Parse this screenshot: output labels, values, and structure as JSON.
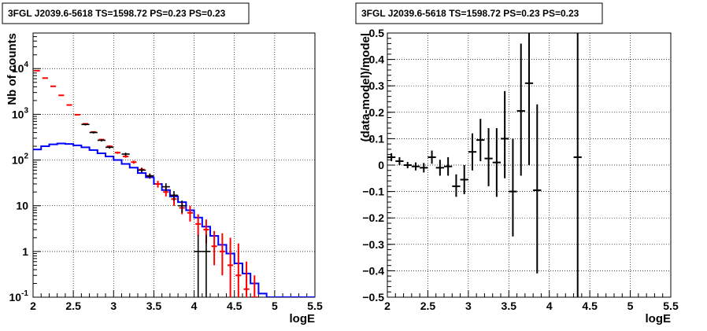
{
  "chart_data": [
    {
      "type": "histogram",
      "title": "3FGL J2039.6-5618 TS=1598.72 PS=0.23 PS=0.23",
      "xlabel": "logE",
      "ylabel": "Nb of counts",
      "xlim": [
        2,
        5.5
      ],
      "ylim": [
        0.1,
        60000
      ],
      "y_scale": "log",
      "grid": true,
      "x_ticks": [
        "2",
        "2.5",
        "3",
        "3.5",
        "4",
        "4.5",
        "5",
        "5.5"
      ],
      "y_ticks": [
        {
          "v": 10000,
          "b": "10",
          "e": "4"
        },
        {
          "v": 1000,
          "b": "10",
          "e": "3"
        },
        {
          "v": 100,
          "b": "10",
          "e": "2"
        },
        {
          "v": 10,
          "b": "10",
          "e": ""
        },
        {
          "v": 1,
          "b": "1",
          "e": ""
        },
        {
          "v": 0.1,
          "b": "10",
          "e": "-1"
        }
      ],
      "bin_width": 0.1,
      "model_blue": {
        "color": "#0000ff",
        "bin_edges": [
          2.0,
          2.1,
          2.2,
          2.3,
          2.4,
          2.5,
          2.6,
          2.7,
          2.8,
          2.9,
          3.0,
          3.1,
          3.2,
          3.3,
          3.4,
          3.5,
          3.6,
          3.7,
          3.8,
          3.9,
          4.0,
          4.1,
          4.2,
          4.3,
          4.4,
          4.5,
          4.6,
          4.7,
          4.8,
          4.9,
          5.0,
          5.1,
          5.2,
          5.3,
          5.4,
          5.5
        ],
        "values": [
          170,
          200,
          220,
          230,
          225,
          210,
          190,
          165,
          140,
          120,
          100,
          82,
          68,
          52,
          42,
          30,
          22,
          16,
          12,
          8,
          5.5,
          3.5,
          2.2,
          1.4,
          0.9,
          0.55,
          0.33,
          0.2,
          0.12,
          0.1,
          0.1,
          0.1,
          0.1,
          0.1,
          0.1
        ]
      },
      "model_red": {
        "color": "#ff0000",
        "points": [
          {
            "x": 2.05,
            "y": 9000,
            "lo": 8800,
            "hi": 9200
          },
          {
            "x": 2.15,
            "y": 6200,
            "lo": 6050,
            "hi": 6350
          },
          {
            "x": 2.25,
            "y": 4100,
            "lo": 4000,
            "hi": 4200
          },
          {
            "x": 2.35,
            "y": 2600,
            "lo": 2550,
            "hi": 2650
          },
          {
            "x": 2.45,
            "y": 1600,
            "lo": 1560,
            "hi": 1640
          },
          {
            "x": 2.55,
            "y": 980,
            "lo": 950,
            "hi": 1010
          },
          {
            "x": 2.65,
            "y": 620,
            "lo": 600,
            "hi": 640
          },
          {
            "x": 2.75,
            "y": 410,
            "lo": 395,
            "hi": 425
          },
          {
            "x": 2.85,
            "y": 280,
            "lo": 270,
            "hi": 290
          },
          {
            "x": 2.95,
            "y": 200,
            "lo": 190,
            "hi": 210
          },
          {
            "x": 3.05,
            "y": 145,
            "lo": 137,
            "hi": 153
          },
          {
            "x": 3.15,
            "y": 120,
            "lo": 112,
            "hi": 128
          },
          {
            "x": 3.25,
            "y": 90,
            "lo": 83,
            "hi": 97
          },
          {
            "x": 3.35,
            "y": 62,
            "lo": 56,
            "hi": 68
          },
          {
            "x": 3.45,
            "y": 45,
            "lo": 40,
            "hi": 50
          },
          {
            "x": 3.55,
            "y": 30,
            "lo": 25,
            "hi": 35
          },
          {
            "x": 3.65,
            "y": 20,
            "lo": 16,
            "hi": 25
          },
          {
            "x": 3.75,
            "y": 14,
            "lo": 10,
            "hi": 18
          },
          {
            "x": 3.85,
            "y": 9,
            "lo": 6.5,
            "hi": 12
          },
          {
            "x": 3.95,
            "y": 7,
            "lo": 4.5,
            "hi": 10
          },
          {
            "x": 4.05,
            "y": 4,
            "lo": 2.2,
            "hi": 6.5
          },
          {
            "x": 4.15,
            "y": 3,
            "lo": 1.5,
            "hi": 5
          },
          {
            "x": 4.25,
            "y": 1.3,
            "lo": 0.5,
            "hi": 2.8
          },
          {
            "x": 4.35,
            "y": 1,
            "lo": 0.3,
            "hi": 2.5
          },
          {
            "x": 4.45,
            "y": 0.5,
            "lo": 0.1,
            "hi": 2.0
          },
          {
            "x": 4.55,
            "y": 0.3,
            "lo": 0.1,
            "hi": 1.5
          },
          {
            "x": 4.65,
            "y": 0.15,
            "lo": 0.1,
            "hi": 0.6
          },
          {
            "x": 4.75,
            "y": 0.1,
            "lo": 0.1,
            "hi": 0.3
          }
        ]
      },
      "data_black": {
        "color": "#000000",
        "points": [
          {
            "x": 2.65,
            "y": 600,
            "lo": 570,
            "hi": 630
          },
          {
            "x": 2.75,
            "y": 400,
            "lo": 380,
            "hi": 420
          },
          {
            "x": 2.85,
            "y": 270,
            "lo": 255,
            "hi": 285
          },
          {
            "x": 2.95,
            "y": 190,
            "lo": 178,
            "hi": 202
          },
          {
            "x": 3.15,
            "y": 135,
            "lo": 125,
            "hi": 145
          },
          {
            "x": 3.35,
            "y": 60,
            "lo": 53,
            "hi": 67
          },
          {
            "x": 3.45,
            "y": 45,
            "lo": 39,
            "hi": 51
          },
          {
            "x": 3.65,
            "y": 26,
            "lo": 21,
            "hi": 31
          },
          {
            "x": 3.75,
            "y": 17,
            "lo": 13,
            "hi": 21
          },
          {
            "x": 3.85,
            "y": 10,
            "lo": 7,
            "hi": 13
          },
          {
            "x": 4.05,
            "y": 1,
            "lo": 0.1,
            "hi": 2.3
          },
          {
            "x": 4.15,
            "y": 1,
            "lo": 0.1,
            "hi": 2.3
          }
        ]
      }
    },
    {
      "type": "scatter",
      "title": "3FGL J2039.6-5618 TS=1598.72 PS=0.23 PS=0.23",
      "xlabel": "logE",
      "ylabel": "(data-model)/model",
      "xlim": [
        2,
        5.5
      ],
      "ylim": [
        -0.5,
        0.5
      ],
      "grid": true,
      "x_ticks": [
        "2",
        "2.5",
        "3",
        "3.5",
        "4",
        "4.5",
        "5",
        "5.5"
      ],
      "y_ticks": [
        "0.5",
        "0.4",
        "0.3",
        "0.2",
        "0.1",
        "0",
        "−0.1",
        "−0.2",
        "−0.3",
        "−0.4",
        "−0.5"
      ],
      "points": [
        {
          "x": 2.05,
          "y": 0.03,
          "lo": 0.015,
          "hi": 0.045
        },
        {
          "x": 2.15,
          "y": 0.015,
          "lo": 0.0,
          "hi": 0.03
        },
        {
          "x": 2.25,
          "y": 0.0,
          "lo": -0.012,
          "hi": 0.012
        },
        {
          "x": 2.35,
          "y": -0.005,
          "lo": -0.02,
          "hi": 0.01
        },
        {
          "x": 2.45,
          "y": -0.01,
          "lo": -0.028,
          "hi": 0.008
        },
        {
          "x": 2.55,
          "y": 0.03,
          "lo": 0.005,
          "hi": 0.055
        },
        {
          "x": 2.65,
          "y": -0.01,
          "lo": -0.04,
          "hi": 0.02
        },
        {
          "x": 2.75,
          "y": -0.005,
          "lo": -0.04,
          "hi": 0.03
        },
        {
          "x": 2.85,
          "y": -0.08,
          "lo": -0.12,
          "hi": -0.035
        },
        {
          "x": 2.95,
          "y": -0.055,
          "lo": -0.11,
          "hi": 0.0
        },
        {
          "x": 3.05,
          "y": 0.05,
          "lo": -0.02,
          "hi": 0.12
        },
        {
          "x": 3.15,
          "y": 0.095,
          "lo": 0.015,
          "hi": 0.175
        },
        {
          "x": 3.25,
          "y": 0.025,
          "lo": -0.08,
          "hi": 0.14
        },
        {
          "x": 3.35,
          "y": 0.01,
          "lo": -0.12,
          "hi": 0.14
        },
        {
          "x": 3.45,
          "y": 0.1,
          "lo": -0.05,
          "hi": 0.28
        },
        {
          "x": 3.55,
          "y": -0.1,
          "lo": -0.27,
          "hi": 0.1
        },
        {
          "x": 3.65,
          "y": 0.205,
          "lo": -0.04,
          "hi": 0.46
        },
        {
          "x": 3.75,
          "y": 0.31,
          "lo": 0.0,
          "hi": 0.5
        },
        {
          "x": 3.85,
          "y": -0.095,
          "lo": -0.41,
          "hi": 0.23
        },
        {
          "x": 4.35,
          "y": 0.03,
          "lo": -0.5,
          "hi": 0.5
        }
      ]
    }
  ]
}
